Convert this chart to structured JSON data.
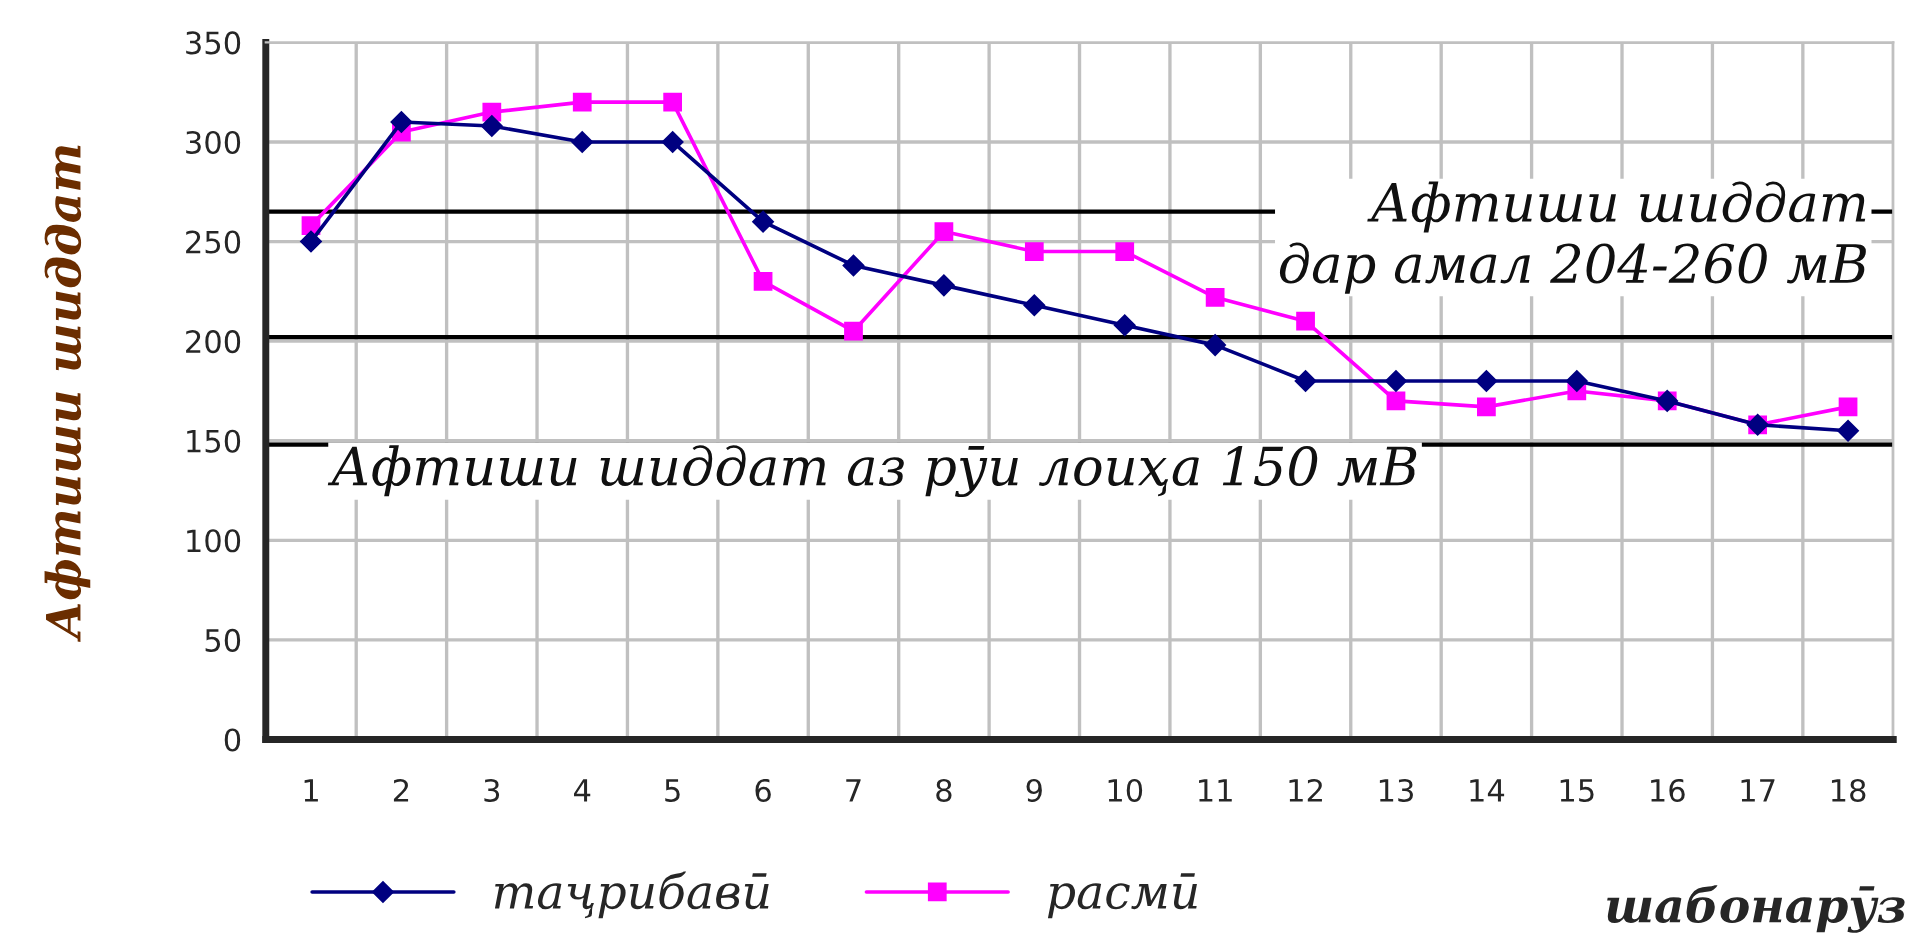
{
  "chart_data": {
    "type": "line",
    "xlabel": "шабонарӯз",
    "ylabel": "Афтиши шиддат",
    "categories": [
      "1",
      "2",
      "3",
      "4",
      "5",
      "6",
      "7",
      "8",
      "9",
      "10",
      "11",
      "12",
      "13",
      "14",
      "15",
      "16",
      "17",
      "18"
    ],
    "series": [
      {
        "name": "таҷрибавӣ",
        "color": "#000080",
        "marker": "diamond",
        "values": [
          250,
          310,
          308,
          300,
          300,
          260,
          238,
          228,
          218,
          208,
          198,
          180,
          180,
          180,
          180,
          170,
          158,
          155
        ]
      },
      {
        "name": "расмӣ",
        "color": "#ff00ff",
        "marker": "square",
        "values": [
          258,
          305,
          315,
          320,
          320,
          230,
          205,
          255,
          245,
          245,
          222,
          210,
          170,
          167,
          175,
          170,
          158,
          167
        ]
      }
    ],
    "ylim": [
      0,
      350
    ],
    "yticks": [
      0,
      50,
      100,
      150,
      200,
      250,
      300,
      350
    ],
    "ref_lines": [
      {
        "axis": "y",
        "value": 265,
        "color": "#000000"
      },
      {
        "axis": "y",
        "value": 202,
        "color": "#000000"
      },
      {
        "axis": "y",
        "value": 148,
        "color": "#000000"
      }
    ],
    "annotations": [
      "Афтиши шиддат\nдар амал 204-260 мВ",
      "Афтиши шиддат аз рӯи лоиҳа 150 мВ"
    ],
    "grid": true,
    "legend": "bottom",
    "line_style": "solid"
  }
}
